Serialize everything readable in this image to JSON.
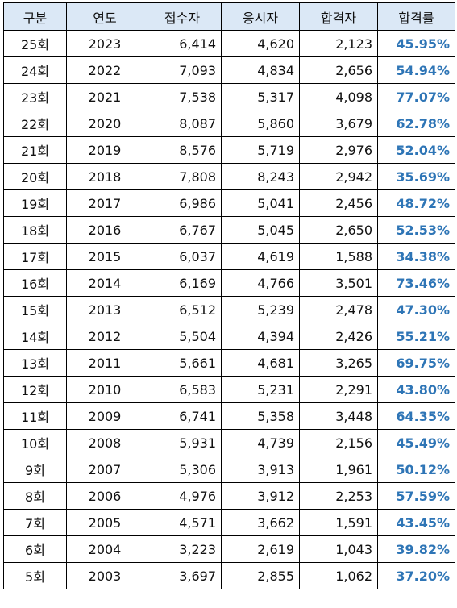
{
  "accent_color": "#2e75b6",
  "header_bg": "#dbe8f6",
  "headers": [
    "구분",
    "연도",
    "접수자",
    "응시자",
    "합격자",
    "합격률"
  ],
  "rows": [
    {
      "round": "25회",
      "year": "2023",
      "applicants": "6,414",
      "examinees": "4,620",
      "passers": "2,123",
      "rate": "45.95%"
    },
    {
      "round": "24회",
      "year": "2022",
      "applicants": "7,093",
      "examinees": "4,834",
      "passers": "2,656",
      "rate": "54.94%"
    },
    {
      "round": "23회",
      "year": "2021",
      "applicants": "7,538",
      "examinees": "5,317",
      "passers": "4,098",
      "rate": "77.07%"
    },
    {
      "round": "22회",
      "year": "2020",
      "applicants": "8,087",
      "examinees": "5,860",
      "passers": "3,679",
      "rate": "62.78%"
    },
    {
      "round": "21회",
      "year": "2019",
      "applicants": "8,576",
      "examinees": "5,719",
      "passers": "2,976",
      "rate": "52.04%"
    },
    {
      "round": "20회",
      "year": "2018",
      "applicants": "7,808",
      "examinees": "8,243",
      "passers": "2,942",
      "rate": "35.69%"
    },
    {
      "round": "19회",
      "year": "2017",
      "applicants": "6,986",
      "examinees": "5,041",
      "passers": "2,456",
      "rate": "48.72%"
    },
    {
      "round": "18회",
      "year": "2016",
      "applicants": "6,767",
      "examinees": "5,045",
      "passers": "2,650",
      "rate": "52.53%"
    },
    {
      "round": "17회",
      "year": "2015",
      "applicants": "6,037",
      "examinees": "4,619",
      "passers": "1,588",
      "rate": "34.38%"
    },
    {
      "round": "16회",
      "year": "2014",
      "applicants": "6,169",
      "examinees": "4,766",
      "passers": "3,501",
      "rate": "73.46%"
    },
    {
      "round": "15회",
      "year": "2013",
      "applicants": "6,512",
      "examinees": "5,239",
      "passers": "2,478",
      "rate": "47.30%"
    },
    {
      "round": "14회",
      "year": "2012",
      "applicants": "5,504",
      "examinees": "4,394",
      "passers": "2,426",
      "rate": "55.21%"
    },
    {
      "round": "13회",
      "year": "2011",
      "applicants": "5,661",
      "examinees": "4,681",
      "passers": "3,265",
      "rate": "69.75%"
    },
    {
      "round": "12회",
      "year": "2010",
      "applicants": "6,583",
      "examinees": "5,231",
      "passers": "2,291",
      "rate": "43.80%"
    },
    {
      "round": "11회",
      "year": "2009",
      "applicants": "6,741",
      "examinees": "5,358",
      "passers": "3,448",
      "rate": "64.35%"
    },
    {
      "round": "10회",
      "year": "2008",
      "applicants": "5,931",
      "examinees": "4,739",
      "passers": "2,156",
      "rate": "45.49%"
    },
    {
      "round": "9회",
      "year": "2007",
      "applicants": "5,306",
      "examinees": "3,913",
      "passers": "1,961",
      "rate": "50.12%"
    },
    {
      "round": "8회",
      "year": "2006",
      "applicants": "4,976",
      "examinees": "3,912",
      "passers": "2,253",
      "rate": "57.59%"
    },
    {
      "round": "7회",
      "year": "2005",
      "applicants": "4,571",
      "examinees": "3,662",
      "passers": "1,591",
      "rate": "43.45%"
    },
    {
      "round": "6회",
      "year": "2004",
      "applicants": "3,223",
      "examinees": "2,619",
      "passers": "1,043",
      "rate": "39.82%"
    },
    {
      "round": "5회",
      "year": "2003",
      "applicants": "3,697",
      "examinees": "2,855",
      "passers": "1,062",
      "rate": "37.20%"
    }
  ]
}
